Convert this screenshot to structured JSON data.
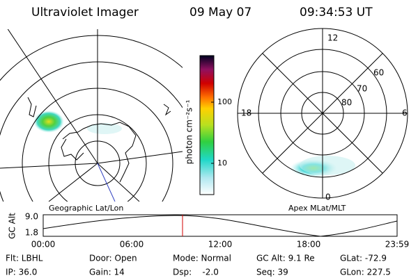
{
  "header": {
    "title": "Ultraviolet Imager",
    "date": "09 May 07",
    "time": "09:34:53 UT"
  },
  "left_panel": {
    "label": "Geographic Lat/Lon"
  },
  "colorbar": {
    "unit": "photon cm⁻²s⁻¹",
    "ticks": [
      "100",
      "10"
    ]
  },
  "right_panel": {
    "label": "Apex MLat/MLT",
    "mlt_labels": [
      "12",
      "18",
      "6",
      "0"
    ],
    "lat_labels": [
      "60",
      "70",
      "80"
    ]
  },
  "altitude_plot": {
    "axis_label": "GC Alt",
    "yticks": [
      "9.0",
      "1.8"
    ],
    "xticks": [
      "00:00",
      "06:00",
      "12:00",
      "18:00",
      "23:59"
    ]
  },
  "info": {
    "rows": [
      [
        "Flt: LBHL",
        "Door: Open",
        "Mode: Normal",
        "GC Alt: 9.1 Re",
        "GLat: -72.9"
      ],
      [
        "IP: 36.0",
        "Gain: 14",
        "Dsp:    -2.0",
        "Seq: 39",
        "GLon: 227.5"
      ]
    ]
  }
}
